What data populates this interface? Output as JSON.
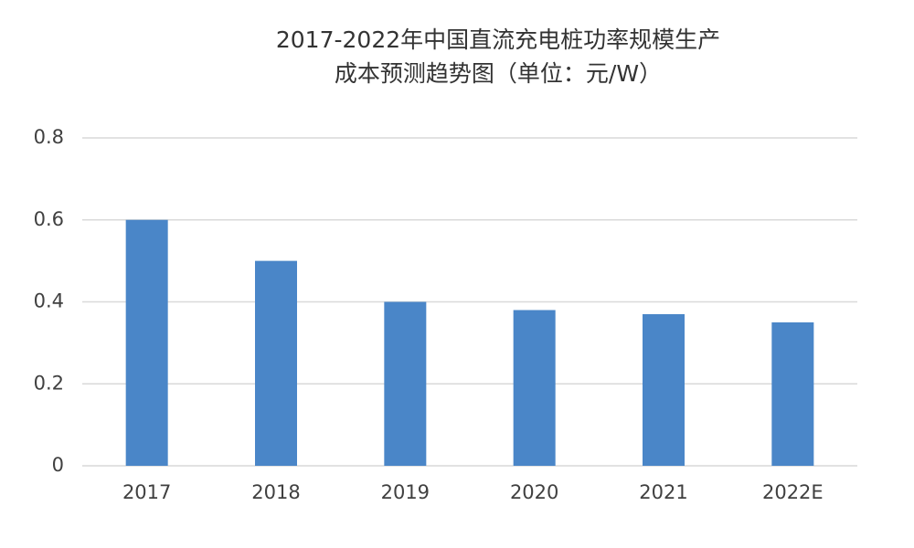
{
  "chart_data": {
    "type": "bar",
    "title": [
      "2017-2022年中国直流充电桩功率规模生产",
      "成本预测趋势图（单位：元/W）"
    ],
    "categories": [
      "2017",
      "2018",
      "2019",
      "2020",
      "2021",
      "2022E"
    ],
    "values": [
      0.6,
      0.5,
      0.4,
      0.38,
      0.37,
      0.35
    ],
    "color": "#4a86c8",
    "ylim": [
      0,
      0.8
    ],
    "yticks": [
      0,
      0.2,
      0.4,
      0.6,
      0.8
    ],
    "grid": true
  }
}
